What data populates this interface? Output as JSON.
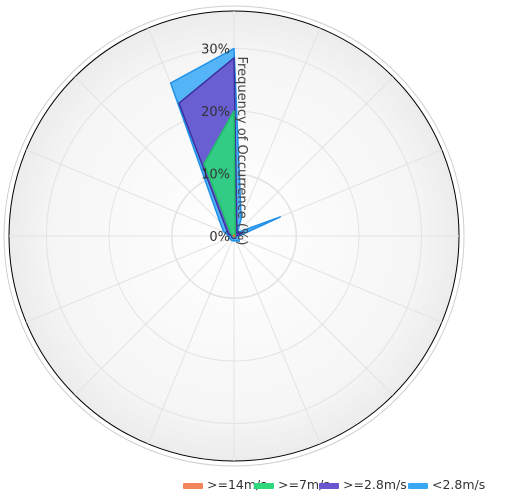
{
  "chart_data": {
    "type": "area",
    "subtype": "wind-rose (polar stacked area)",
    "title": "",
    "radial_axis": {
      "label": "Frequency of Occurrence (%)",
      "range": [
        0,
        32
      ],
      "ticks": [
        0,
        10,
        20,
        30
      ],
      "tick_labels": [
        "0%",
        "10%",
        "20%",
        "30%"
      ],
      "grid": true
    },
    "angular_axis": {
      "directions": 16,
      "direction_step_deg": 22.5,
      "start": "north",
      "rotation": "clockwise",
      "grid": true
    },
    "stacking": "cumulative",
    "legend": {
      "position": "bottom-right",
      "items": [
        {
          "label": ">=14m/s",
          "color": "#f4845a"
        },
        {
          "label": ">=7m/s",
          "color": "#2ed87d"
        },
        {
          "label": ">=2.8m/s",
          "color": "#6b55cf"
        },
        {
          "label": "<2.8m/s",
          "color": "#38a8f5"
        }
      ]
    },
    "series": [
      {
        "name": "<2.8m/s",
        "color": "#38a8f5",
        "cumulative_values": [
          30.0,
          3.0,
          0.8,
          8.0,
          0.8,
          0.8,
          1.2,
          0.8,
          0.8,
          0.8,
          0.8,
          0.8,
          0.8,
          1.8,
          3.2,
          26.5
        ]
      },
      {
        "name": ">=2.8m/s",
        "color": "#6b55cf",
        "cumulative_values": [
          28.5,
          1.2,
          0.6,
          1.5,
          0.4,
          0.3,
          0.4,
          0.4,
          0.4,
          0.4,
          0.4,
          0.4,
          0.4,
          1.0,
          1.8,
          23.0
        ]
      },
      {
        "name": ">=7m/s",
        "color": "#2ed87d",
        "cumulative_values": [
          20.0,
          0.5,
          0.2,
          0.2,
          0.2,
          0.2,
          0.2,
          0.2,
          0.2,
          0.2,
          0.2,
          0.2,
          0.2,
          0.3,
          0.8,
          12.5
        ]
      },
      {
        "name": ">=14m/s",
        "color": "#f4845a",
        "cumulative_values": [
          0.2,
          0.1,
          0.1,
          0.1,
          0.1,
          0.1,
          0.1,
          0.1,
          0.1,
          0.1,
          0.1,
          0.1,
          0.1,
          0.1,
          0.1,
          0.1
        ]
      }
    ]
  }
}
